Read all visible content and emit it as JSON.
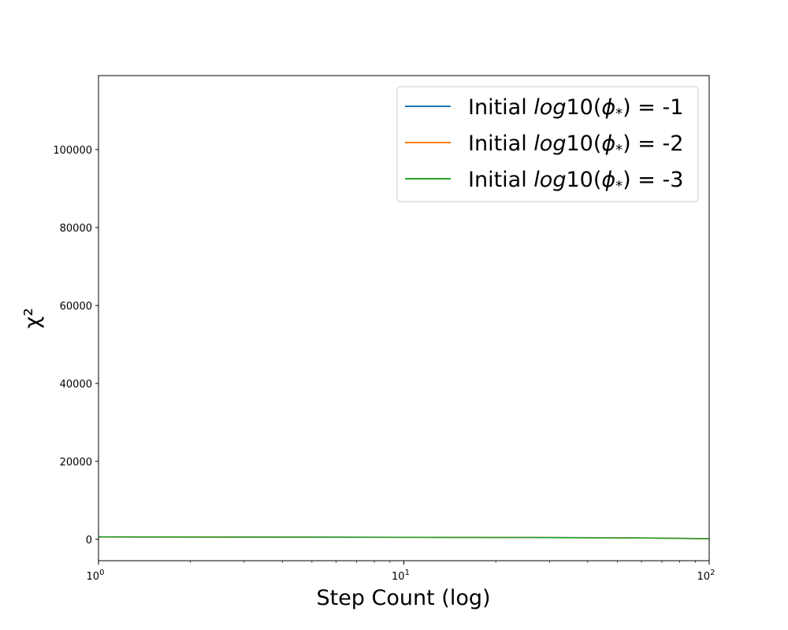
{
  "chart_data": {
    "type": "line",
    "title": "",
    "xlabel": "Step Count (log)",
    "ylabel": "χ²",
    "xscale": "log",
    "xlim": [
      1,
      100
    ],
    "ylim": [
      -5500,
      119000
    ],
    "xticks": [
      {
        "value": 1,
        "base": "10",
        "exp": "0"
      },
      {
        "value": 10,
        "base": "10",
        "exp": "1"
      },
      {
        "value": 100,
        "base": "10",
        "exp": "2"
      }
    ],
    "yticks": [
      0,
      20000,
      40000,
      60000,
      80000,
      100000
    ],
    "grid": false,
    "legend_position": "upper-right",
    "series": [
      {
        "name": "Initial log10(ϕ*) = -1",
        "legend": {
          "prefix": "Initial ",
          "fn": "log",
          "num": "10(",
          "phi": "ϕ",
          "sub": "*",
          "suffix": ") = -1"
        },
        "color": "#1f77b4",
        "x": [
          1,
          2,
          3,
          5,
          10,
          20,
          30,
          50,
          70,
          100
        ],
        "y": [
          620,
          590,
          570,
          550,
          510,
          470,
          440,
          380,
          300,
          150
        ]
      },
      {
        "name": "Initial log10(ϕ*) = -2",
        "legend": {
          "prefix": "Initial ",
          "fn": "log",
          "num": "10(",
          "phi": "ϕ",
          "sub": "*",
          "suffix": ") = -2"
        },
        "color": "#ff7f0e",
        "x": [
          1,
          2,
          3,
          5,
          10,
          20,
          30,
          50,
          70,
          100
        ],
        "y": [
          610,
          580,
          560,
          540,
          500,
          460,
          430,
          370,
          290,
          140
        ]
      },
      {
        "name": "Initial log10(ϕ*) = -3",
        "legend": {
          "prefix": "Initial ",
          "fn": "log",
          "num": "10(",
          "phi": "ϕ",
          "sub": "*",
          "suffix": ") = -3"
        },
        "color": "#2ca02c",
        "x": [
          1,
          2,
          3,
          5,
          10,
          20,
          30,
          50,
          70,
          100
        ],
        "y": [
          600,
          570,
          550,
          530,
          490,
          450,
          420,
          360,
          280,
          130
        ]
      }
    ]
  }
}
